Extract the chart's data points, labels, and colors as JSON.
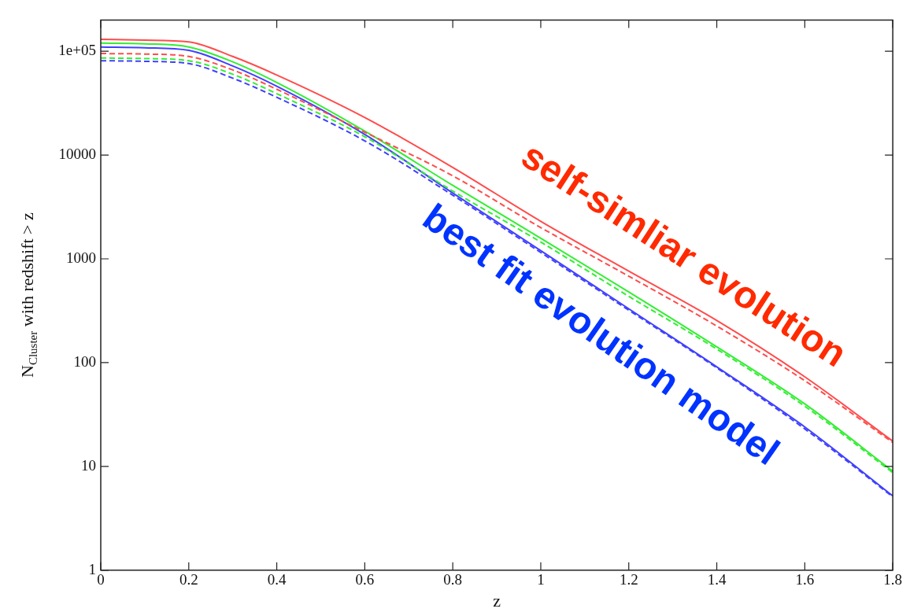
{
  "chart_data": {
    "type": "line",
    "xlabel": "z",
    "ylabel": "N$_{Cluster}$ with redshift > z",
    "log": "y",
    "grid": false,
    "legend": false,
    "marker": "none",
    "x": [
      0,
      0.1,
      0.2,
      0.3,
      0.4,
      0.6,
      0.8,
      1,
      1.2,
      1.4,
      1.6,
      1.8
    ],
    "xlim": [
      0,
      1.8
    ],
    "xticks": [
      0,
      0.2,
      0.4,
      0.6,
      0.8,
      1,
      1.2,
      1.4,
      1.6,
      1.8
    ],
    "ylim": [
      1,
      200000
    ],
    "yticks": [
      1,
      10,
      100,
      1000,
      10000,
      {
        "value": 100000,
        "label": "1e+05"
      }
    ],
    "series": [
      {
        "color": "#ff4c4c",
        "line_style": "solid",
        "values": [
          130000,
          128000,
          123000,
          89000,
          59000,
          23000,
          7600,
          2300,
          760,
          255,
          73,
          17.5
        ]
      },
      {
        "color": "#ff4c4c",
        "line_style": "dashed",
        "values": [
          95000,
          94000,
          89000,
          66000,
          43000,
          16600,
          6300,
          2000,
          680,
          225,
          67,
          17
        ]
      },
      {
        "color": "#33ee33",
        "line_style": "solid",
        "values": [
          120000,
          118000,
          110000,
          79000,
          50000,
          17000,
          5100,
          1580,
          480,
          142,
          40,
          9
        ]
      },
      {
        "color": "#33ee33",
        "line_style": "dashed",
        "values": [
          86000,
          85000,
          81000,
          60000,
          39000,
          15000,
          4500,
          1450,
          435,
          135,
          38,
          8.7
        ]
      },
      {
        "color": "#4040ff",
        "line_style": "solid",
        "values": [
          110000,
          108000,
          102000,
          72000,
          46000,
          15800,
          4300,
          1200,
          330,
          91,
          24,
          5.2
        ]
      },
      {
        "color": "#4040ff",
        "line_style": "dashed",
        "values": [
          81000,
          80000,
          76000,
          55000,
          36000,
          13700,
          4100,
          1150,
          320,
          89,
          23,
          5.1
        ]
      }
    ],
    "annotations": [
      "self-simliar evolution",
      "best fit evolution model"
    ]
  }
}
